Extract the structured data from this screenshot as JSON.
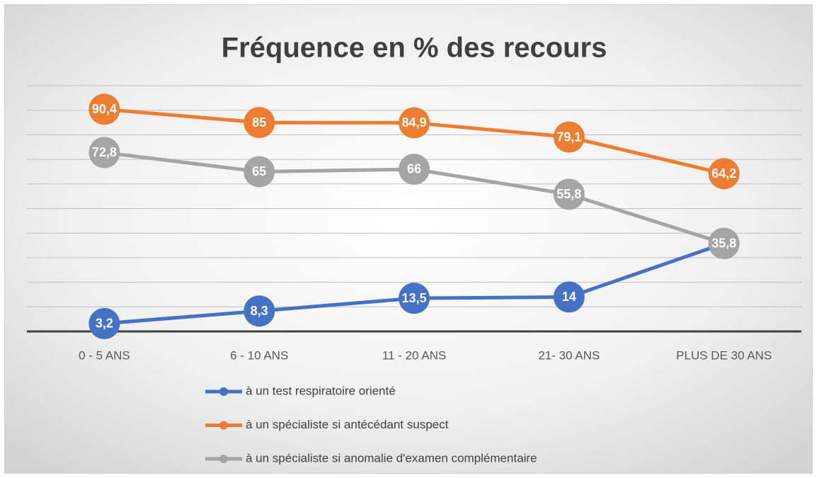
{
  "chart_data": {
    "type": "line",
    "title": "Fréquence en % des recours",
    "categories": [
      "0 - 5 ANS",
      "6 - 10 ANS",
      "11 - 20 ANS",
      "21- 30 ANS",
      "PLUS DE 30 ANS"
    ],
    "series": [
      {
        "name": "à un test respiratoire orienté",
        "color": "#4472c4",
        "values": [
          3.2,
          8.3,
          13.5,
          14,
          35.8
        ],
        "value_labels": [
          "3,2",
          "8,3",
          "13,5",
          "14",
          "35,8"
        ]
      },
      {
        "name": "à un spécialiste si antécédant suspect",
        "color": "#ed7d31",
        "values": [
          90.4,
          85,
          84.9,
          79.1,
          64.2
        ],
        "value_labels": [
          "90,4",
          "85",
          "84,9",
          "79,1",
          "64,2"
        ]
      },
      {
        "name": "à un spécialiste  si anomalie d'examen complémentaire",
        "color": "#a5a5a5",
        "values": [
          72.8,
          65,
          66,
          55.8,
          35.8
        ],
        "value_labels": [
          "72,8",
          "65",
          "66",
          "55,8",
          "35,8"
        ]
      }
    ],
    "ylim": [
      0,
      100
    ],
    "yticks": [
      0,
      10,
      20,
      30,
      40,
      50,
      60,
      70,
      80,
      90,
      100
    ],
    "grid": true
  }
}
